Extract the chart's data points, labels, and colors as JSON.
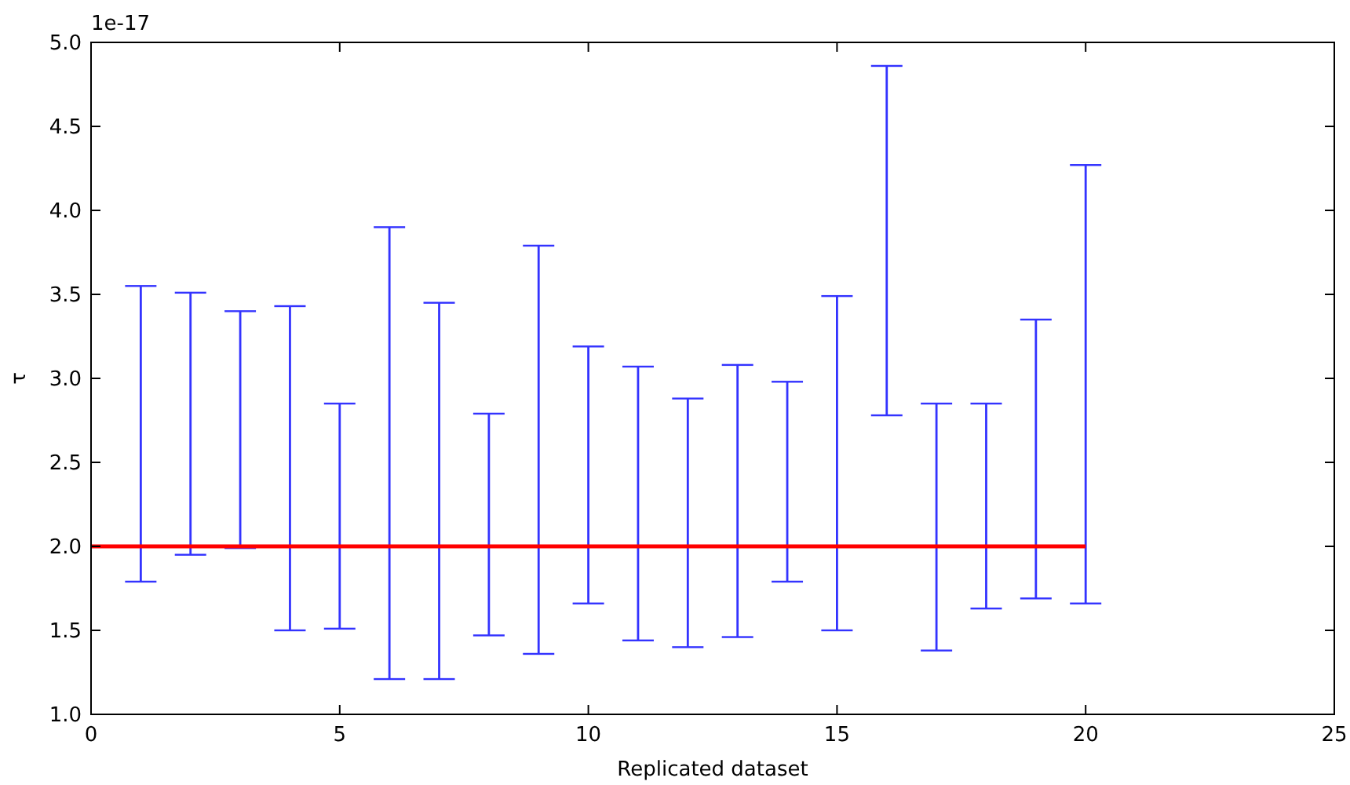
{
  "chart_data": {
    "type": "bar",
    "xlabel": "Replicated dataset",
    "ylabel": "τ",
    "annotations": [
      "1e-17"
    ],
    "xlim": [
      0,
      25
    ],
    "xticks": [
      0,
      5,
      10,
      15,
      20,
      25
    ],
    "ylim": [
      1.0,
      5.0
    ],
    "yticks": [
      {
        "value": 1.0,
        "label": "1.0"
      },
      {
        "value": 1.5,
        "label": "1.5"
      },
      {
        "value": 2.0,
        "label": "2.0"
      },
      {
        "value": 2.5,
        "label": "2.5"
      },
      {
        "value": 3.0,
        "label": "3.0"
      },
      {
        "value": 3.5,
        "label": "3.5"
      },
      {
        "value": 4.0,
        "label": "4.0"
      },
      {
        "value": 4.5,
        "label": "4.5"
      },
      {
        "value": 5.0,
        "label": "5.0"
      }
    ],
    "grid": false,
    "series": [
      {
        "color": "#3333ff",
        "x": [
          1,
          2,
          3,
          4,
          5,
          6,
          7,
          8,
          9,
          10,
          11,
          12,
          13,
          14,
          15,
          16,
          17,
          18,
          19,
          20
        ],
        "base": [
          1.79,
          1.95,
          1.99,
          1.5,
          1.51,
          1.21,
          1.21,
          1.47,
          1.36,
          1.66,
          1.44,
          1.4,
          1.46,
          1.79,
          1.5,
          2.78,
          1.38,
          1.63,
          1.69,
          1.66
        ],
        "values": [
          1.76,
          1.56,
          1.41,
          1.93,
          1.34,
          2.69,
          2.24,
          1.32,
          2.43,
          1.53,
          1.63,
          1.48,
          1.62,
          1.19,
          1.99,
          2.08,
          1.47,
          1.22,
          1.66,
          2.61
        ]
      },
      {
        "type": "line",
        "color": "#ff0000",
        "line_style": "solid",
        "x": [
          0,
          20
        ],
        "values": [
          2.0,
          2.0
        ]
      }
    ]
  }
}
